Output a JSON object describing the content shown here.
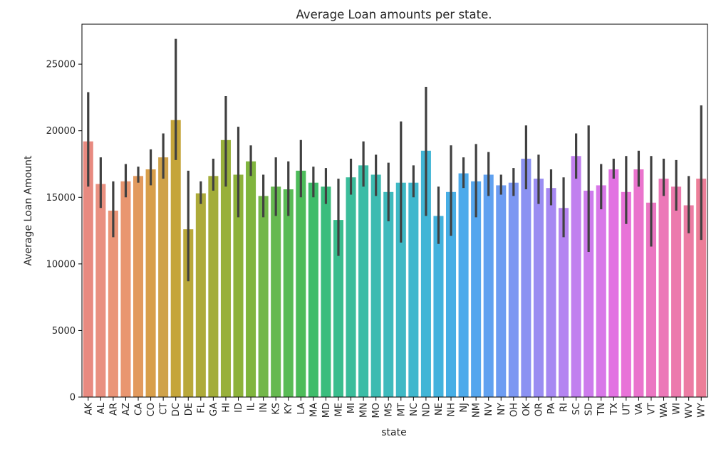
{
  "chart_data": {
    "type": "bar",
    "title": "Average Loan amounts per state.",
    "xlabel": "state",
    "ylabel": "Average Loan Amount",
    "ylim": [
      0,
      28000
    ],
    "yticks": [
      0,
      5000,
      10000,
      15000,
      20000,
      25000
    ],
    "grid": false,
    "error_bars": true,
    "categories": [
      "AK",
      "AL",
      "AR",
      "AZ",
      "CA",
      "CO",
      "CT",
      "DC",
      "DE",
      "FL",
      "GA",
      "HI",
      "ID",
      "IL",
      "IN",
      "KS",
      "KY",
      "LA",
      "MA",
      "MD",
      "ME",
      "MI",
      "MN",
      "MO",
      "MS",
      "MT",
      "NC",
      "ND",
      "NE",
      "NH",
      "NJ",
      "NM",
      "NV",
      "NY",
      "OH",
      "OK",
      "OR",
      "PA",
      "RI",
      "SC",
      "SD",
      "TN",
      "TX",
      "UT",
      "VA",
      "VT",
      "WA",
      "WI",
      "WV",
      "WY"
    ],
    "values": [
      19200,
      16000,
      14000,
      16200,
      16600,
      17100,
      18000,
      20800,
      12600,
      15300,
      16600,
      19300,
      16700,
      17700,
      15100,
      15800,
      15600,
      17000,
      16100,
      15800,
      13300,
      16500,
      17400,
      16700,
      15400,
      16100,
      16100,
      18500,
      13600,
      15400,
      16800,
      16200,
      16700,
      15900,
      16100,
      17900,
      16400,
      15700,
      14200,
      18100,
      15500,
      15900,
      17100,
      15400,
      17100,
      14600,
      16400,
      15800,
      14400,
      16400
    ],
    "error_low": [
      15800,
      14200,
      12000,
      15000,
      16100,
      15900,
      16400,
      17800,
      8700,
      14500,
      15500,
      15800,
      13500,
      16600,
      13500,
      13600,
      13600,
      15000,
      15000,
      14500,
      10600,
      15200,
      15800,
      15100,
      13200,
      11600,
      15000,
      13600,
      11500,
      12100,
      15700,
      13500,
      15100,
      15200,
      15100,
      15600,
      14500,
      14400,
      12000,
      16400,
      10900,
      14100,
      16400,
      13000,
      15800,
      11300,
      15100,
      14000,
      12300,
      11800
    ],
    "error_high": [
      22900,
      18000,
      16200,
      17500,
      17300,
      18600,
      19800,
      26900,
      17000,
      16200,
      17900,
      22600,
      20300,
      18900,
      16700,
      18000,
      17700,
      19300,
      17300,
      17200,
      16400,
      17900,
      19200,
      18200,
      17600,
      20700,
      17400,
      23300,
      15800,
      18900,
      18000,
      19000,
      18400,
      16700,
      17200,
      20400,
      18200,
      17100,
      16500,
      19800,
      20400,
      17500,
      17900,
      18100,
      18500,
      18100,
      17900,
      17800,
      16600,
      21900
    ],
    "colors": [
      "#e88a80",
      "#e99080",
      "#ea9578",
      "#e99670",
      "#e29a5e",
      "#d89f4a",
      "#cfa24a",
      "#c5a53a",
      "#b9a83a",
      "#aeab3a",
      "#a3ad3a",
      "#98b03a",
      "#8db23a",
      "#80b53e",
      "#73b74a",
      "#66b950",
      "#59bb55",
      "#4dbc5a",
      "#3fbc6a",
      "#3abd7d",
      "#3abd8d",
      "#3bbd9b",
      "#3cbca6",
      "#3dbbb1",
      "#3ebabc",
      "#3fb9c5",
      "#40b7cd",
      "#41b5d6",
      "#43b2dd",
      "#47aee5",
      "#4caaeb",
      "#55a6ee",
      "#60a1f0",
      "#6d9cf2",
      "#7c97f2",
      "#8b92f2",
      "#9a8df2",
      "#a788f2",
      "#b484f1",
      "#c180ef",
      "#cd7bec",
      "#d877e8",
      "#e272e2",
      "#e873d8",
      "#ea74cd",
      "#eb76c2",
      "#ec78b8",
      "#ec7aad",
      "#ec7ca3",
      "#ec7e98"
    ]
  }
}
